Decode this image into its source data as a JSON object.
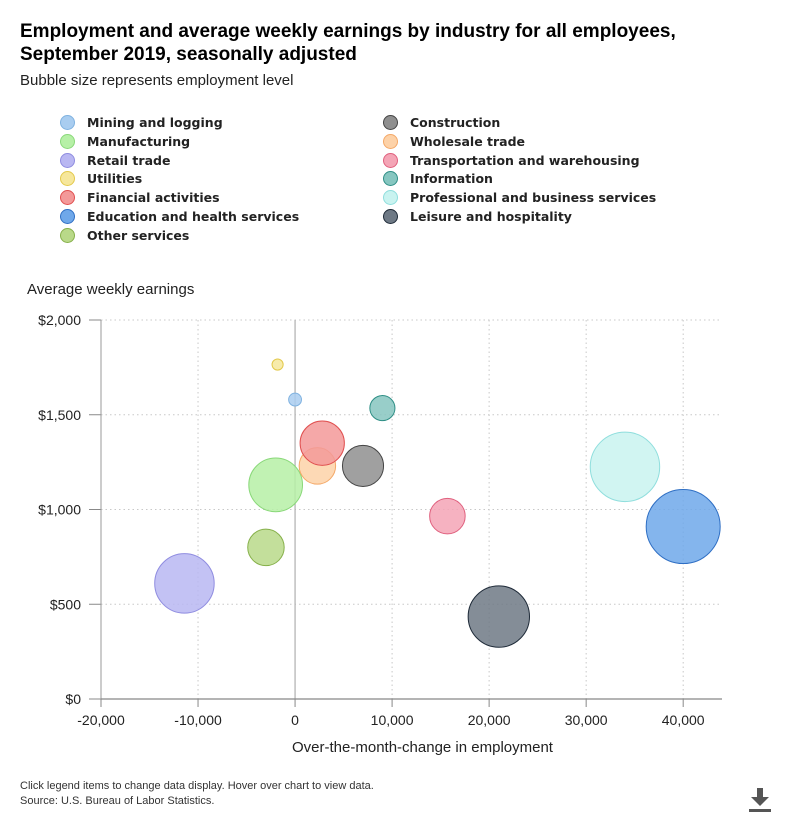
{
  "title_line1": "Employment and average weekly earnings by industry for all employees,",
  "title_line2": "September 2019, seasonally adjusted",
  "subtitle": "Bubble size represents employment level",
  "legend": [
    {
      "label": "Mining and logging",
      "color": "#a9cdf0",
      "stroke": "#7fb2e0"
    },
    {
      "label": "Construction",
      "color": "#8f8f8f",
      "stroke": "#444444"
    },
    {
      "label": "Manufacturing",
      "color": "#b6f0a6",
      "stroke": "#8ad87a"
    },
    {
      "label": "Wholesale trade",
      "color": "#fdd2a8",
      "stroke": "#f4a867"
    },
    {
      "label": "Retail trade",
      "color": "#b9b7f2",
      "stroke": "#8f8ce0"
    },
    {
      "label": "Transportation and warehousing",
      "color": "#f4a5b6",
      "stroke": "#e0607e"
    },
    {
      "label": "Utilities",
      "color": "#f6e79c",
      "stroke": "#e3c94c"
    },
    {
      "label": "Information",
      "color": "#86c6c0",
      "stroke": "#2f8f86"
    },
    {
      "label": "Financial activities",
      "color": "#f39999",
      "stroke": "#e04f4f"
    },
    {
      "label": "Professional and business services",
      "color": "#c9f3f0",
      "stroke": "#8fdedd"
    },
    {
      "label": "Education and health services",
      "color": "#6fa8ea",
      "stroke": "#2f6fc4"
    },
    {
      "label": "Leisure and hospitality",
      "color": "#6e7985",
      "stroke": "#1e2a38"
    },
    {
      "label": "Other services",
      "color": "#b9d989",
      "stroke": "#86b04a"
    }
  ],
  "chart_data": {
    "type": "scatter",
    "title": "Employment and average weekly earnings by industry for all employees, September 2019, seasonally adjusted",
    "xlabel": "Over-the-month-change in employment",
    "ylabel": "Average weekly earnings",
    "xlim": [
      -20000,
      44000
    ],
    "ylim": [
      0,
      2000
    ],
    "xticks": [
      -20000,
      -10000,
      0,
      10000,
      20000,
      30000,
      40000
    ],
    "xtick_labels": [
      "-20,000",
      "-10,000",
      "0",
      "10,000",
      "20,000",
      "30,000",
      "40,000"
    ],
    "yticks": [
      0,
      500,
      1000,
      1500,
      2000
    ],
    "ytick_labels": [
      "$0",
      "$500",
      "$1,000",
      "$1,500",
      "$2,000"
    ],
    "grid": true,
    "series": [
      {
        "name": "Mining and logging",
        "x": 0,
        "y": 1580,
        "employment": 730
      },
      {
        "name": "Construction",
        "x": 7000,
        "y": 1230,
        "employment": 7500
      },
      {
        "name": "Manufacturing",
        "x": -2000,
        "y": 1130,
        "employment": 12800
      },
      {
        "name": "Wholesale trade",
        "x": 2300,
        "y": 1230,
        "employment": 5900
      },
      {
        "name": "Retail trade",
        "x": -11400,
        "y": 610,
        "employment": 15700
      },
      {
        "name": "Transportation and warehousing",
        "x": 15700,
        "y": 965,
        "employment": 5600
      },
      {
        "name": "Utilities",
        "x": -1800,
        "y": 1765,
        "employment": 550
      },
      {
        "name": "Information",
        "x": 9000,
        "y": 1535,
        "employment": 2800
      },
      {
        "name": "Financial activities",
        "x": 2800,
        "y": 1350,
        "employment": 8700
      },
      {
        "name": "Professional and business services",
        "x": 34000,
        "y": 1225,
        "employment": 21400
      },
      {
        "name": "Education and health services",
        "x": 40000,
        "y": 910,
        "employment": 24300
      },
      {
        "name": "Leisure and hospitality",
        "x": 21000,
        "y": 435,
        "employment": 16700
      },
      {
        "name": "Other services",
        "x": -3000,
        "y": 800,
        "employment": 5900
      }
    ]
  },
  "footer_line1": "Click legend items to change data display. Hover over chart to view data.",
  "footer_line2": "Source: U.S. Bureau of Labor Statistics."
}
